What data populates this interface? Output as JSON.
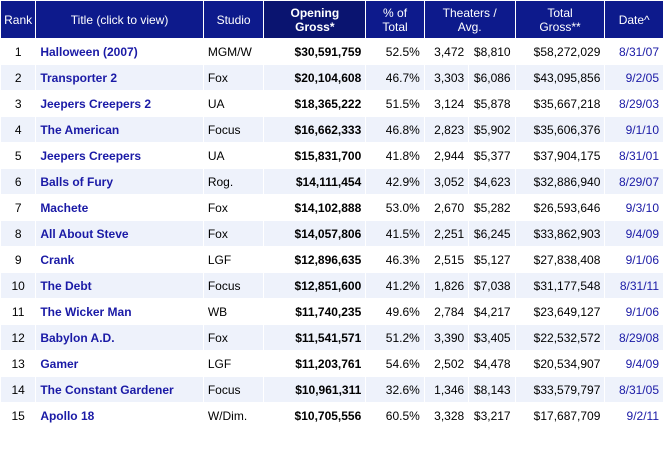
{
  "headers": {
    "rank": "Rank",
    "title": "Title (click to view)",
    "studio": "Studio",
    "opening_line1": "Opening",
    "opening_line2": "Gross*",
    "pct_line1": "% of",
    "pct_line2": "Total",
    "theaters_line1": "Theaters /",
    "theaters_line2": "Avg.",
    "total_line1": "Total",
    "total_line2": "Gross**",
    "date": "Date^"
  },
  "rows": [
    {
      "rank": "1",
      "title": "Halloween (2007)",
      "studio": "MGM/W",
      "opening": "$30,591,759",
      "pct": "52.5%",
      "theaters": "3,472",
      "avg": "$8,810",
      "total": "$58,272,029",
      "date": "8/31/07"
    },
    {
      "rank": "2",
      "title": "Transporter 2",
      "studio": "Fox",
      "opening": "$20,104,608",
      "pct": "46.7%",
      "theaters": "3,303",
      "avg": "$6,086",
      "total": "$43,095,856",
      "date": "9/2/05"
    },
    {
      "rank": "3",
      "title": "Jeepers Creepers 2",
      "studio": "UA",
      "opening": "$18,365,222",
      "pct": "51.5%",
      "theaters": "3,124",
      "avg": "$5,878",
      "total": "$35,667,218",
      "date": "8/29/03"
    },
    {
      "rank": "4",
      "title": "The American",
      "studio": "Focus",
      "opening": "$16,662,333",
      "pct": "46.8%",
      "theaters": "2,823",
      "avg": "$5,902",
      "total": "$35,606,376",
      "date": "9/1/10"
    },
    {
      "rank": "5",
      "title": "Jeepers Creepers",
      "studio": "UA",
      "opening": "$15,831,700",
      "pct": "41.8%",
      "theaters": "2,944",
      "avg": "$5,377",
      "total": "$37,904,175",
      "date": "8/31/01"
    },
    {
      "rank": "6",
      "title": "Balls of Fury",
      "studio": "Rog.",
      "opening": "$14,111,454",
      "pct": "42.9%",
      "theaters": "3,052",
      "avg": "$4,623",
      "total": "$32,886,940",
      "date": "8/29/07"
    },
    {
      "rank": "7",
      "title": "Machete",
      "studio": "Fox",
      "opening": "$14,102,888",
      "pct": "53.0%",
      "theaters": "2,670",
      "avg": "$5,282",
      "total": "$26,593,646",
      "date": "9/3/10"
    },
    {
      "rank": "8",
      "title": "All About Steve",
      "studio": "Fox",
      "opening": "$14,057,806",
      "pct": "41.5%",
      "theaters": "2,251",
      "avg": "$6,245",
      "total": "$33,862,903",
      "date": "9/4/09"
    },
    {
      "rank": "9",
      "title": "Crank",
      "studio": "LGF",
      "opening": "$12,896,635",
      "pct": "46.3%",
      "theaters": "2,515",
      "avg": "$5,127",
      "total": "$27,838,408",
      "date": "9/1/06"
    },
    {
      "rank": "10",
      "title": "The Debt",
      "studio": "Focus",
      "opening": "$12,851,600",
      "pct": "41.2%",
      "theaters": "1,826",
      "avg": "$7,038",
      "total": "$31,177,548",
      "date": "8/31/11"
    },
    {
      "rank": "11",
      "title": "The Wicker Man",
      "studio": "WB",
      "opening": "$11,740,235",
      "pct": "49.6%",
      "theaters": "2,784",
      "avg": "$4,217",
      "total": "$23,649,127",
      "date": "9/1/06"
    },
    {
      "rank": "12",
      "title": "Babylon A.D.",
      "studio": "Fox",
      "opening": "$11,541,571",
      "pct": "51.2%",
      "theaters": "3,390",
      "avg": "$3,405",
      "total": "$22,532,572",
      "date": "8/29/08"
    },
    {
      "rank": "13",
      "title": "Gamer",
      "studio": "LGF",
      "opening": "$11,203,761",
      "pct": "54.6%",
      "theaters": "2,502",
      "avg": "$4,478",
      "total": "$20,534,907",
      "date": "9/4/09"
    },
    {
      "rank": "14",
      "title": "The Constant Gardener",
      "studio": "Focus",
      "opening": "$10,961,311",
      "pct": "32.6%",
      "theaters": "1,346",
      "avg": "$8,143",
      "total": "$33,579,797",
      "date": "8/31/05"
    },
    {
      "rank": "15",
      "title": "Apollo 18",
      "studio": "W/Dim.",
      "opening": "$10,705,556",
      "pct": "60.5%",
      "theaters": "3,328",
      "avg": "$3,217",
      "total": "$17,687,709",
      "date": "9/2/11"
    }
  ]
}
